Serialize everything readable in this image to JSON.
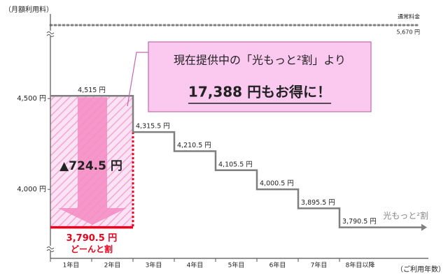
{
  "chart_data": {
    "type": "step",
    "y_label": "（月額利用料）",
    "x_label": "（ご利用年数）",
    "categories": [
      "1年目",
      "2年目",
      "3年目",
      "4年目",
      "5年目",
      "6年目",
      "7年目",
      "8年目以降"
    ],
    "series": [
      {
        "name": "光もっと²割",
        "color": "#7f7f7f",
        "values": [
          4515,
          4515,
          4315.5,
          4210.5,
          4105.5,
          4000.5,
          3895.5,
          3790.5
        ],
        "value_labels": [
          "4,515 円",
          null,
          "4,315.5 円",
          "4,210.5 円",
          "4,105.5 円",
          "4,000.5 円",
          "3,895.5 円",
          "3,790.5 円"
        ]
      },
      {
        "name": "どーんと割",
        "color": "#e8001c",
        "values": [
          3790.5,
          3790.5,
          null,
          null,
          null,
          null,
          null,
          null
        ],
        "value_labels": [
          "3,790.5 円",
          null,
          null,
          null,
          null,
          null,
          null,
          null
        ]
      }
    ],
    "reference": {
      "name": "通常料金",
      "value": 5670,
      "label": "5,670 円",
      "color": "#7f7f7f"
    },
    "ylim": [
      3620,
      4920
    ],
    "yticks": [
      {
        "value": 4500,
        "label": "4,500 円"
      },
      {
        "value": 4000,
        "label": "4,000 円"
      }
    ],
    "savings_label": "▲724.5 円",
    "callout": {
      "line1": "現在提供中の「光もっと²割」より",
      "line2": "17,388 円もお得に！"
    }
  }
}
